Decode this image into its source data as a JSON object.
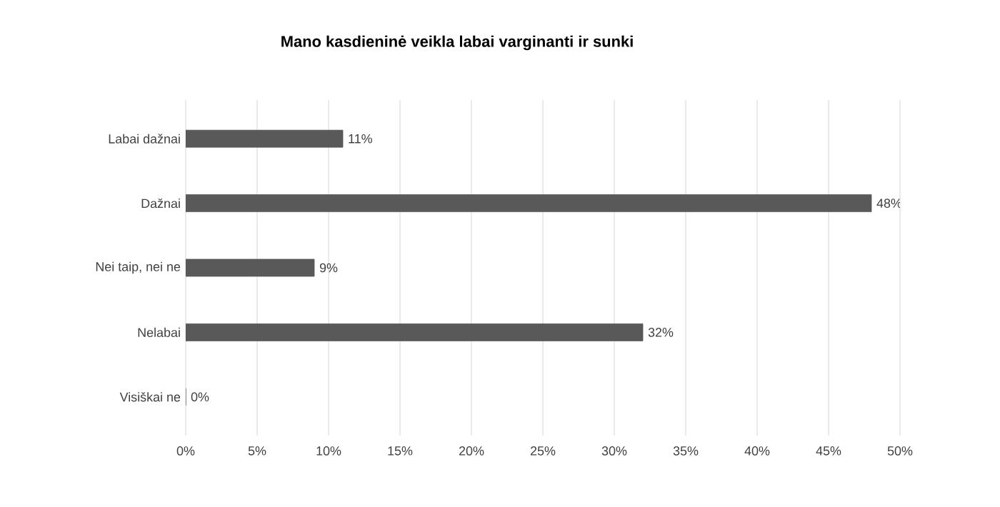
{
  "chart_data": {
    "type": "bar",
    "orientation": "horizontal",
    "title": "Mano kasdieninė veikla labai varginanti ir sunki",
    "categories": [
      "Labai dažnai",
      "Dažnai",
      "Nei taip, nei ne",
      "Nelabai",
      "Visiškai ne"
    ],
    "values": [
      11,
      48,
      9,
      32,
      0
    ],
    "value_labels": [
      "11%",
      "48%",
      "9%",
      "32%",
      "0%"
    ],
    "color": "#595959",
    "xlim": [
      0,
      50
    ],
    "xticks": [
      {
        "value": 0,
        "label": "0%"
      },
      {
        "value": 5,
        "label": "5%"
      },
      {
        "value": 10,
        "label": "10%"
      },
      {
        "value": 15,
        "label": "15%"
      },
      {
        "value": 20,
        "label": "20%"
      },
      {
        "value": 25,
        "label": "25%"
      },
      {
        "value": 30,
        "label": "30%"
      },
      {
        "value": 35,
        "label": "35%"
      },
      {
        "value": 40,
        "label": "40%"
      },
      {
        "value": 45,
        "label": "45%"
      },
      {
        "value": 50,
        "label": "50%"
      }
    ],
    "grid": "x"
  }
}
